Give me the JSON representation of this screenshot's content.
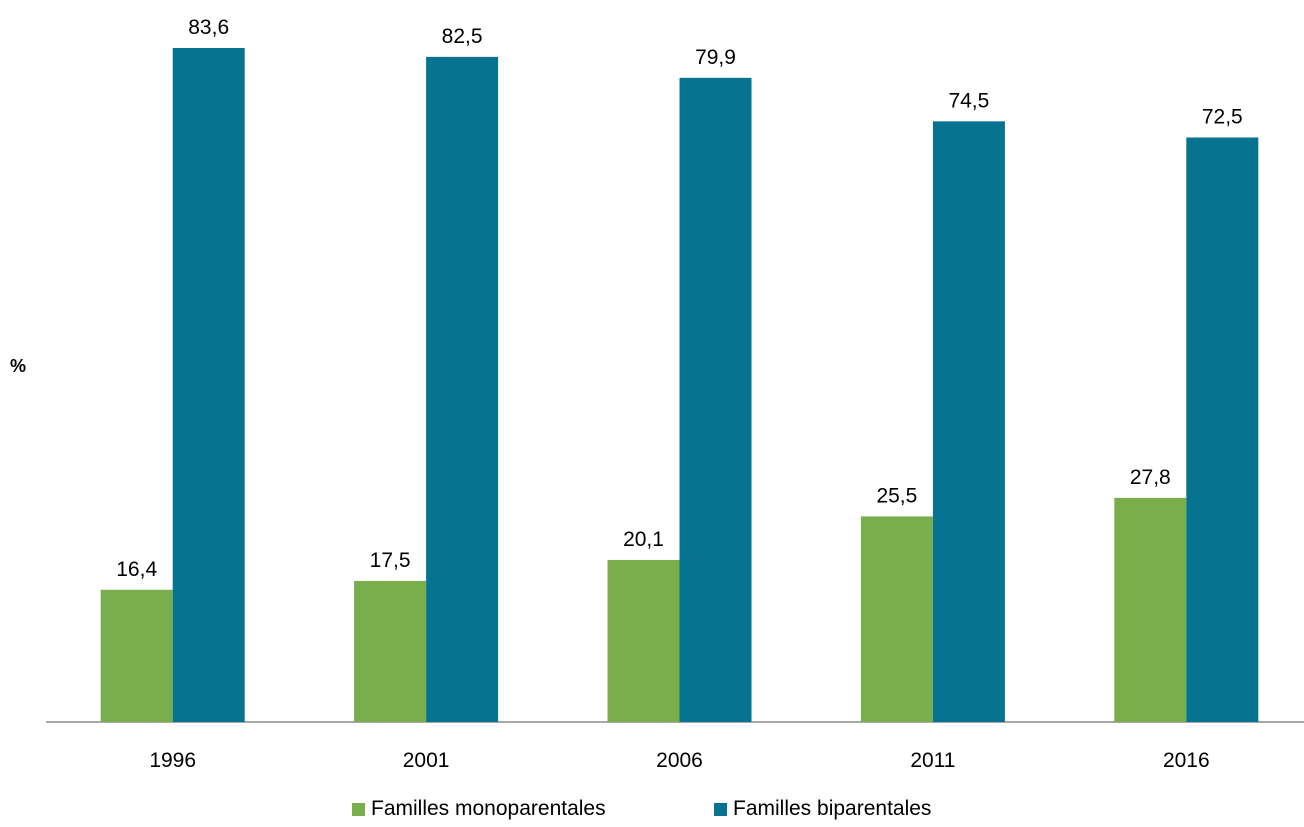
{
  "chart_data": {
    "type": "bar",
    "categories": [
      "1996",
      "2001",
      "2006",
      "2011",
      "2016"
    ],
    "series": [
      {
        "name": "Familles monoparentales",
        "values": [
          16.4,
          17.5,
          20.1,
          25.5,
          27.8
        ],
        "labels": [
          "16,4",
          "17,5",
          "20,1",
          "25,5",
          "27,8"
        ],
        "color": "#7aad4c"
      },
      {
        "name": "Familles biparentales",
        "values": [
          83.6,
          82.5,
          79.9,
          74.5,
          72.5
        ],
        "labels": [
          "83,6",
          "82,5",
          "79,9",
          "74,5",
          "72,5"
        ],
        "color": "#067490"
      }
    ],
    "title": "",
    "xlabel": "",
    "ylabel": "%",
    "ylim": [
      0,
      100
    ],
    "grid": false,
    "legend": "bottom"
  }
}
